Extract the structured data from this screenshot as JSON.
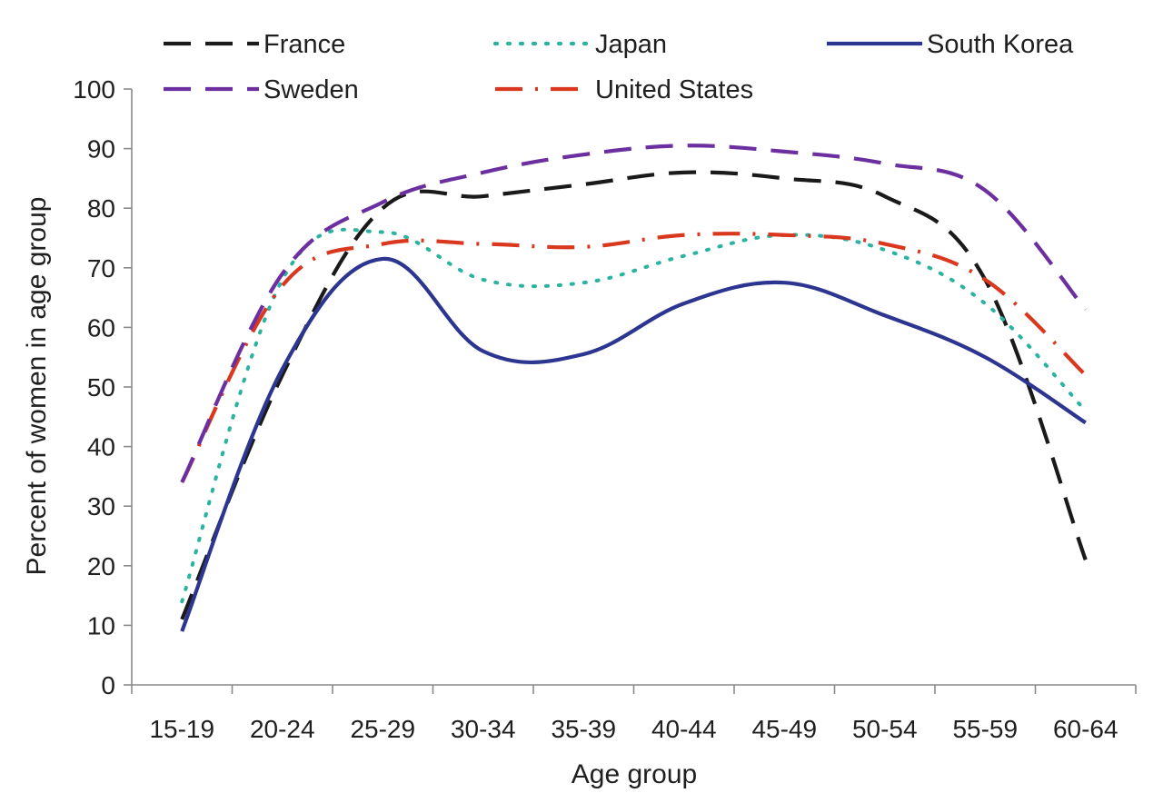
{
  "chart_data": {
    "type": "line",
    "title": "",
    "xlabel": "Age group",
    "ylabel": "Percent of women in age group",
    "categories": [
      "15-19",
      "20-24",
      "25-29",
      "30-34",
      "35-39",
      "40-44",
      "45-49",
      "50-54",
      "55-59",
      "60-64"
    ],
    "ylim": [
      0,
      100
    ],
    "yticks": [
      0,
      10,
      20,
      30,
      40,
      50,
      60,
      70,
      80,
      90,
      100
    ],
    "grid": false,
    "legend_position": "top",
    "series": [
      {
        "name": "France",
        "color": "#1a1a1a",
        "style": "dashed",
        "values": [
          11,
          52,
          80,
          82,
          84,
          86,
          85,
          82,
          68,
          21
        ]
      },
      {
        "name": "Japan",
        "color": "#2ab3a0",
        "style": "dotted",
        "values": [
          14,
          68,
          76,
          68,
          67.5,
          72,
          75.5,
          73,
          64,
          46
        ]
      },
      {
        "name": "South Korea",
        "color": "#2c3590",
        "style": "solid",
        "values": [
          9,
          53,
          71.5,
          56,
          55.5,
          64,
          67.5,
          62,
          55,
          44
        ]
      },
      {
        "name": "Sweden",
        "color": "#6b2fa0",
        "style": "dashed",
        "values": [
          34,
          69,
          81,
          86,
          89,
          90.5,
          89.5,
          87.5,
          83,
          63
        ]
      },
      {
        "name": "United States",
        "color": "#d9381e",
        "style": "dashdot",
        "values": [
          34,
          67,
          74,
          74,
          73.5,
          75.5,
          75.5,
          74,
          68,
          52
        ]
      }
    ]
  }
}
